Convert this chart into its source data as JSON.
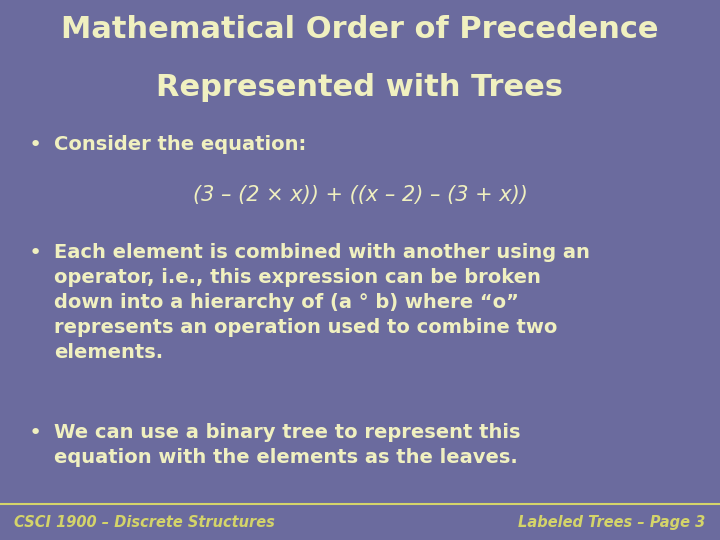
{
  "title_line1": "Mathematical Order of Precedence",
  "title_line2": "Represented with Trees",
  "background_color": "#6b6b9e",
  "footer_bg_color": "#3a3a5a",
  "footer_line_color": "#d4d46a",
  "title_color": "#f0f0c0",
  "body_color": "#f0f0c0",
  "footer_color": "#d4d46a",
  "footer_left": "CSCI 1900 – Discrete Structures",
  "footer_right": "Labeled Trees – Page 3",
  "bullet1": "Consider the equation:",
  "equation": "(3 – (2 × x)) + ((x – 2) – (3 + x))",
  "bullet2_text": "Each element is combined with another using an\noperator, i.e., this expression can be broken\ndown into a hierarchy of (a ° b) where “o”\nrepresents an operation used to combine two\nelements.",
  "bullet3_text": "We can use a binary tree to represent this\nequation with the elements as the leaves.",
  "title_fontsize": 22,
  "body_fontsize": 14,
  "equation_fontsize": 15,
  "footer_fontsize": 10.5
}
